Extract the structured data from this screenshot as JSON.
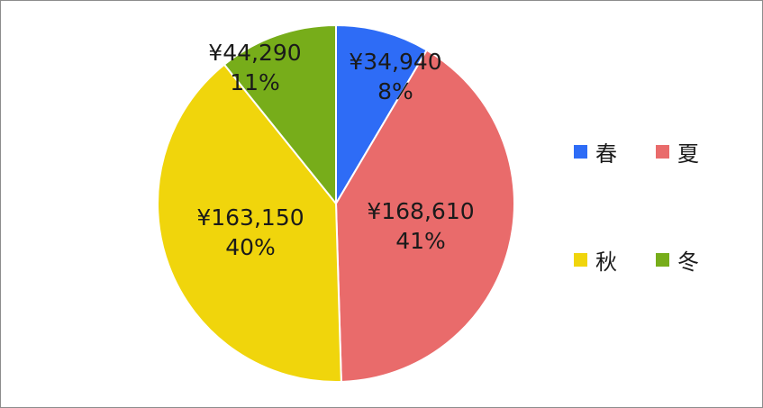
{
  "chart_data": {
    "type": "pie",
    "categories": [
      "春",
      "夏",
      "秋",
      "冬"
    ],
    "values": [
      34940,
      168610,
      163150,
      44290
    ],
    "value_labels": [
      "¥34,940",
      "¥168,610",
      "¥163,150",
      "¥44,290"
    ],
    "percent_labels": [
      "8%",
      "41%",
      "40%",
      "11%"
    ],
    "colors": [
      "#2e6cf6",
      "#e96b6b",
      "#f0d50c",
      "#77ad1a"
    ],
    "start_angle": "12 o'clock",
    "direction": "clockwise",
    "legend": {
      "placement": "right",
      "entries": [
        "春",
        "夏",
        "秋",
        "冬"
      ]
    },
    "title": ""
  }
}
